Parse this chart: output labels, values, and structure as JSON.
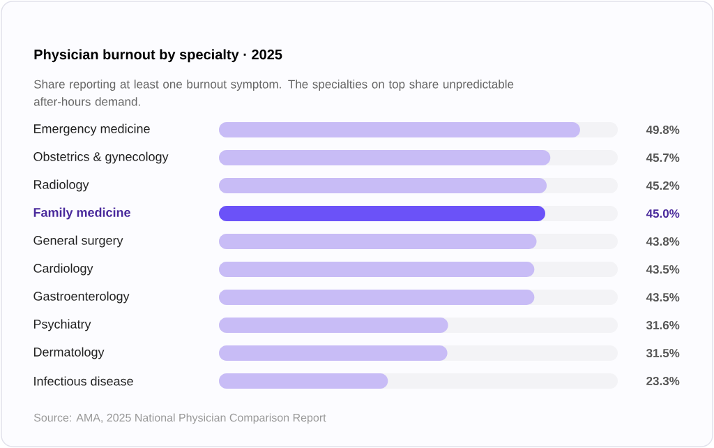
{
  "chart_data": {
    "type": "bar",
    "orientation": "horizontal",
    "title": "Physician burnout by specialty · 2025",
    "subtitle": "Share reporting at least one burnout symptom. The specialties on top share unpredictable after-hours demand.",
    "categories": [
      "Emergency medicine",
      "Obstetrics & gynecology",
      "Radiology",
      "Family medicine",
      "General surgery",
      "Cardiology",
      "Gastroenterology",
      "Psychiatry",
      "Dermatology",
      "Infectious disease"
    ],
    "values": [
      49.8,
      45.7,
      45.2,
      45.0,
      43.8,
      43.5,
      43.5,
      31.6,
      31.5,
      23.3
    ],
    "value_labels": [
      "49.8%",
      "45.7%",
      "45.2%",
      "45.0%",
      "43.8%",
      "43.5%",
      "43.5%",
      "31.6%",
      "31.5%",
      "23.3%"
    ],
    "colors": [
      "#c8bcf6",
      "#c8bcf6",
      "#c8bcf6",
      "#6b52f8",
      "#c8bcf6",
      "#c8bcf6",
      "#c8bcf6",
      "#c8bcf6",
      "#c8bcf6",
      "#c8bcf6"
    ],
    "xlim": [
      0,
      55
    ],
    "tick_labels": "y",
    "annotations": [
      "Source: AMA, 2025 National Physician Comparison Report"
    ]
  }
}
